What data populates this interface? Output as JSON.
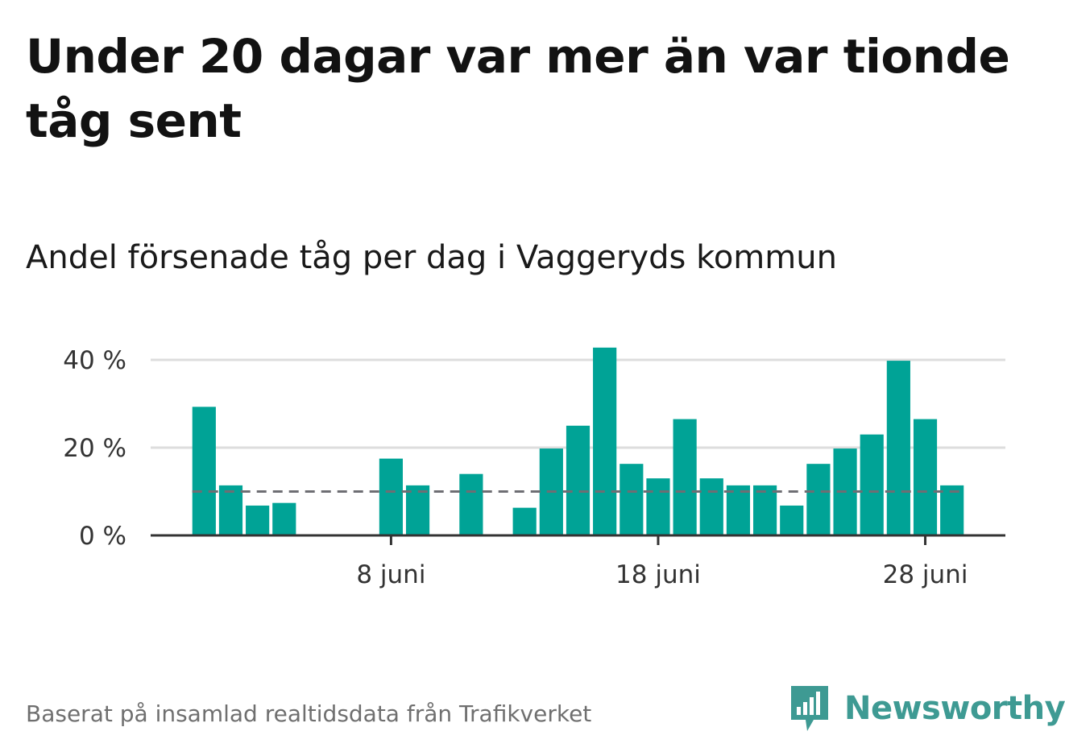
{
  "title": "Under 20 dagar var mer än var tionde tåg sent",
  "subtitle": "Andel försenade tåg per dag i Vaggeryds kommun",
  "source": "Baserat på insamlad realtidsdata från Trafikverket",
  "logo": {
    "text": "Newsworthy",
    "icon": "newsworthy-bar-chart-icon"
  },
  "colors": {
    "bar": "#00a396",
    "grid": "#dddddd",
    "axis": "#333333",
    "reference": "#6e6e73",
    "logo": "#3e9a93"
  },
  "chart_data": {
    "type": "bar",
    "title": "Andel försenade tåg per dag i Vaggeryds kommun",
    "x_unit": "day of June",
    "x": [
      1,
      2,
      3,
      4,
      5,
      6,
      7,
      8,
      9,
      10,
      11,
      12,
      13,
      14,
      15,
      16,
      17,
      18,
      19,
      20,
      21,
      22,
      23,
      24,
      25,
      26,
      27,
      28,
      29
    ],
    "values": [
      29.3,
      11.4,
      6.8,
      7.4,
      0,
      0,
      0,
      17.5,
      11.4,
      0,
      14.0,
      0,
      6.3,
      19.8,
      25.0,
      42.8,
      16.3,
      13.0,
      26.5,
      13.0,
      11.4,
      11.4,
      6.8,
      16.3,
      19.8,
      23.0,
      39.8,
      26.5,
      11.4
    ],
    "reference_line": 10,
    "y_ticks": [
      0,
      20,
      40
    ],
    "y_tick_labels": [
      "0 %",
      "20 %",
      "40 %"
    ],
    "x_ticks": [
      8,
      18,
      28
    ],
    "x_tick_labels": [
      "8 juni",
      "18 juni",
      "28 juni"
    ],
    "ylim": [
      0,
      44
    ],
    "xlim": [
      -1,
      31
    ],
    "grid": true
  }
}
